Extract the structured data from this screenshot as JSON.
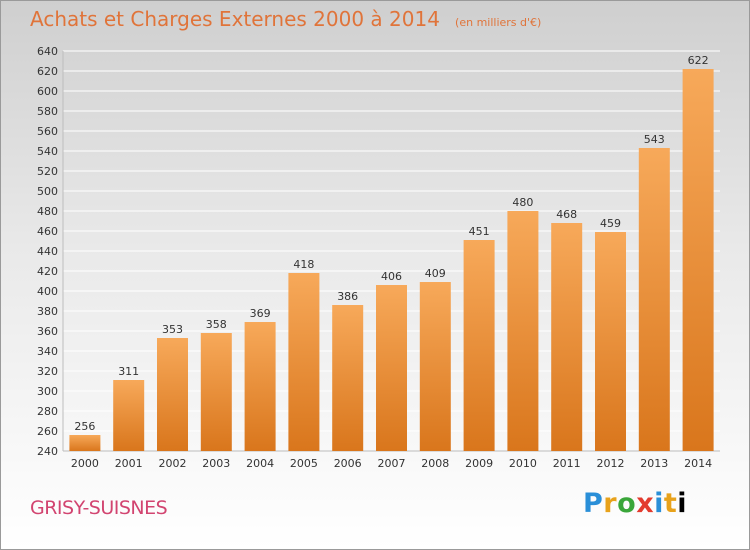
{
  "header": {
    "title": "Achats et Charges Externes 2000 à 2014",
    "unit": "(en milliers d'€)"
  },
  "footer": {
    "place": "GRISY-SUISNES",
    "logo": "Proxiti"
  },
  "colors": {
    "title": "#e0743a",
    "place": "#d24470",
    "bar_light": "#f7a95a",
    "bar_dark": "#d9761c",
    "grid": "#ffffff",
    "axis_text": "#333333"
  },
  "chart_data": {
    "type": "bar",
    "title": "Achats et Charges Externes 2000 à 2014",
    "subtitle": "(en milliers d'€)",
    "xlabel": "",
    "ylabel": "",
    "categories": [
      "2000",
      "2001",
      "2002",
      "2003",
      "2004",
      "2005",
      "2006",
      "2007",
      "2008",
      "2009",
      "2010",
      "2011",
      "2012",
      "2013",
      "2014"
    ],
    "values": [
      256,
      311,
      353,
      358,
      369,
      418,
      386,
      406,
      409,
      451,
      480,
      468,
      459,
      543,
      622
    ],
    "ylim": [
      240,
      640
    ],
    "yticks": [
      240,
      260,
      280,
      300,
      320,
      340,
      360,
      380,
      400,
      420,
      440,
      460,
      480,
      500,
      520,
      540,
      560,
      580,
      600,
      620,
      640
    ],
    "grid": true,
    "data_labels": true
  }
}
